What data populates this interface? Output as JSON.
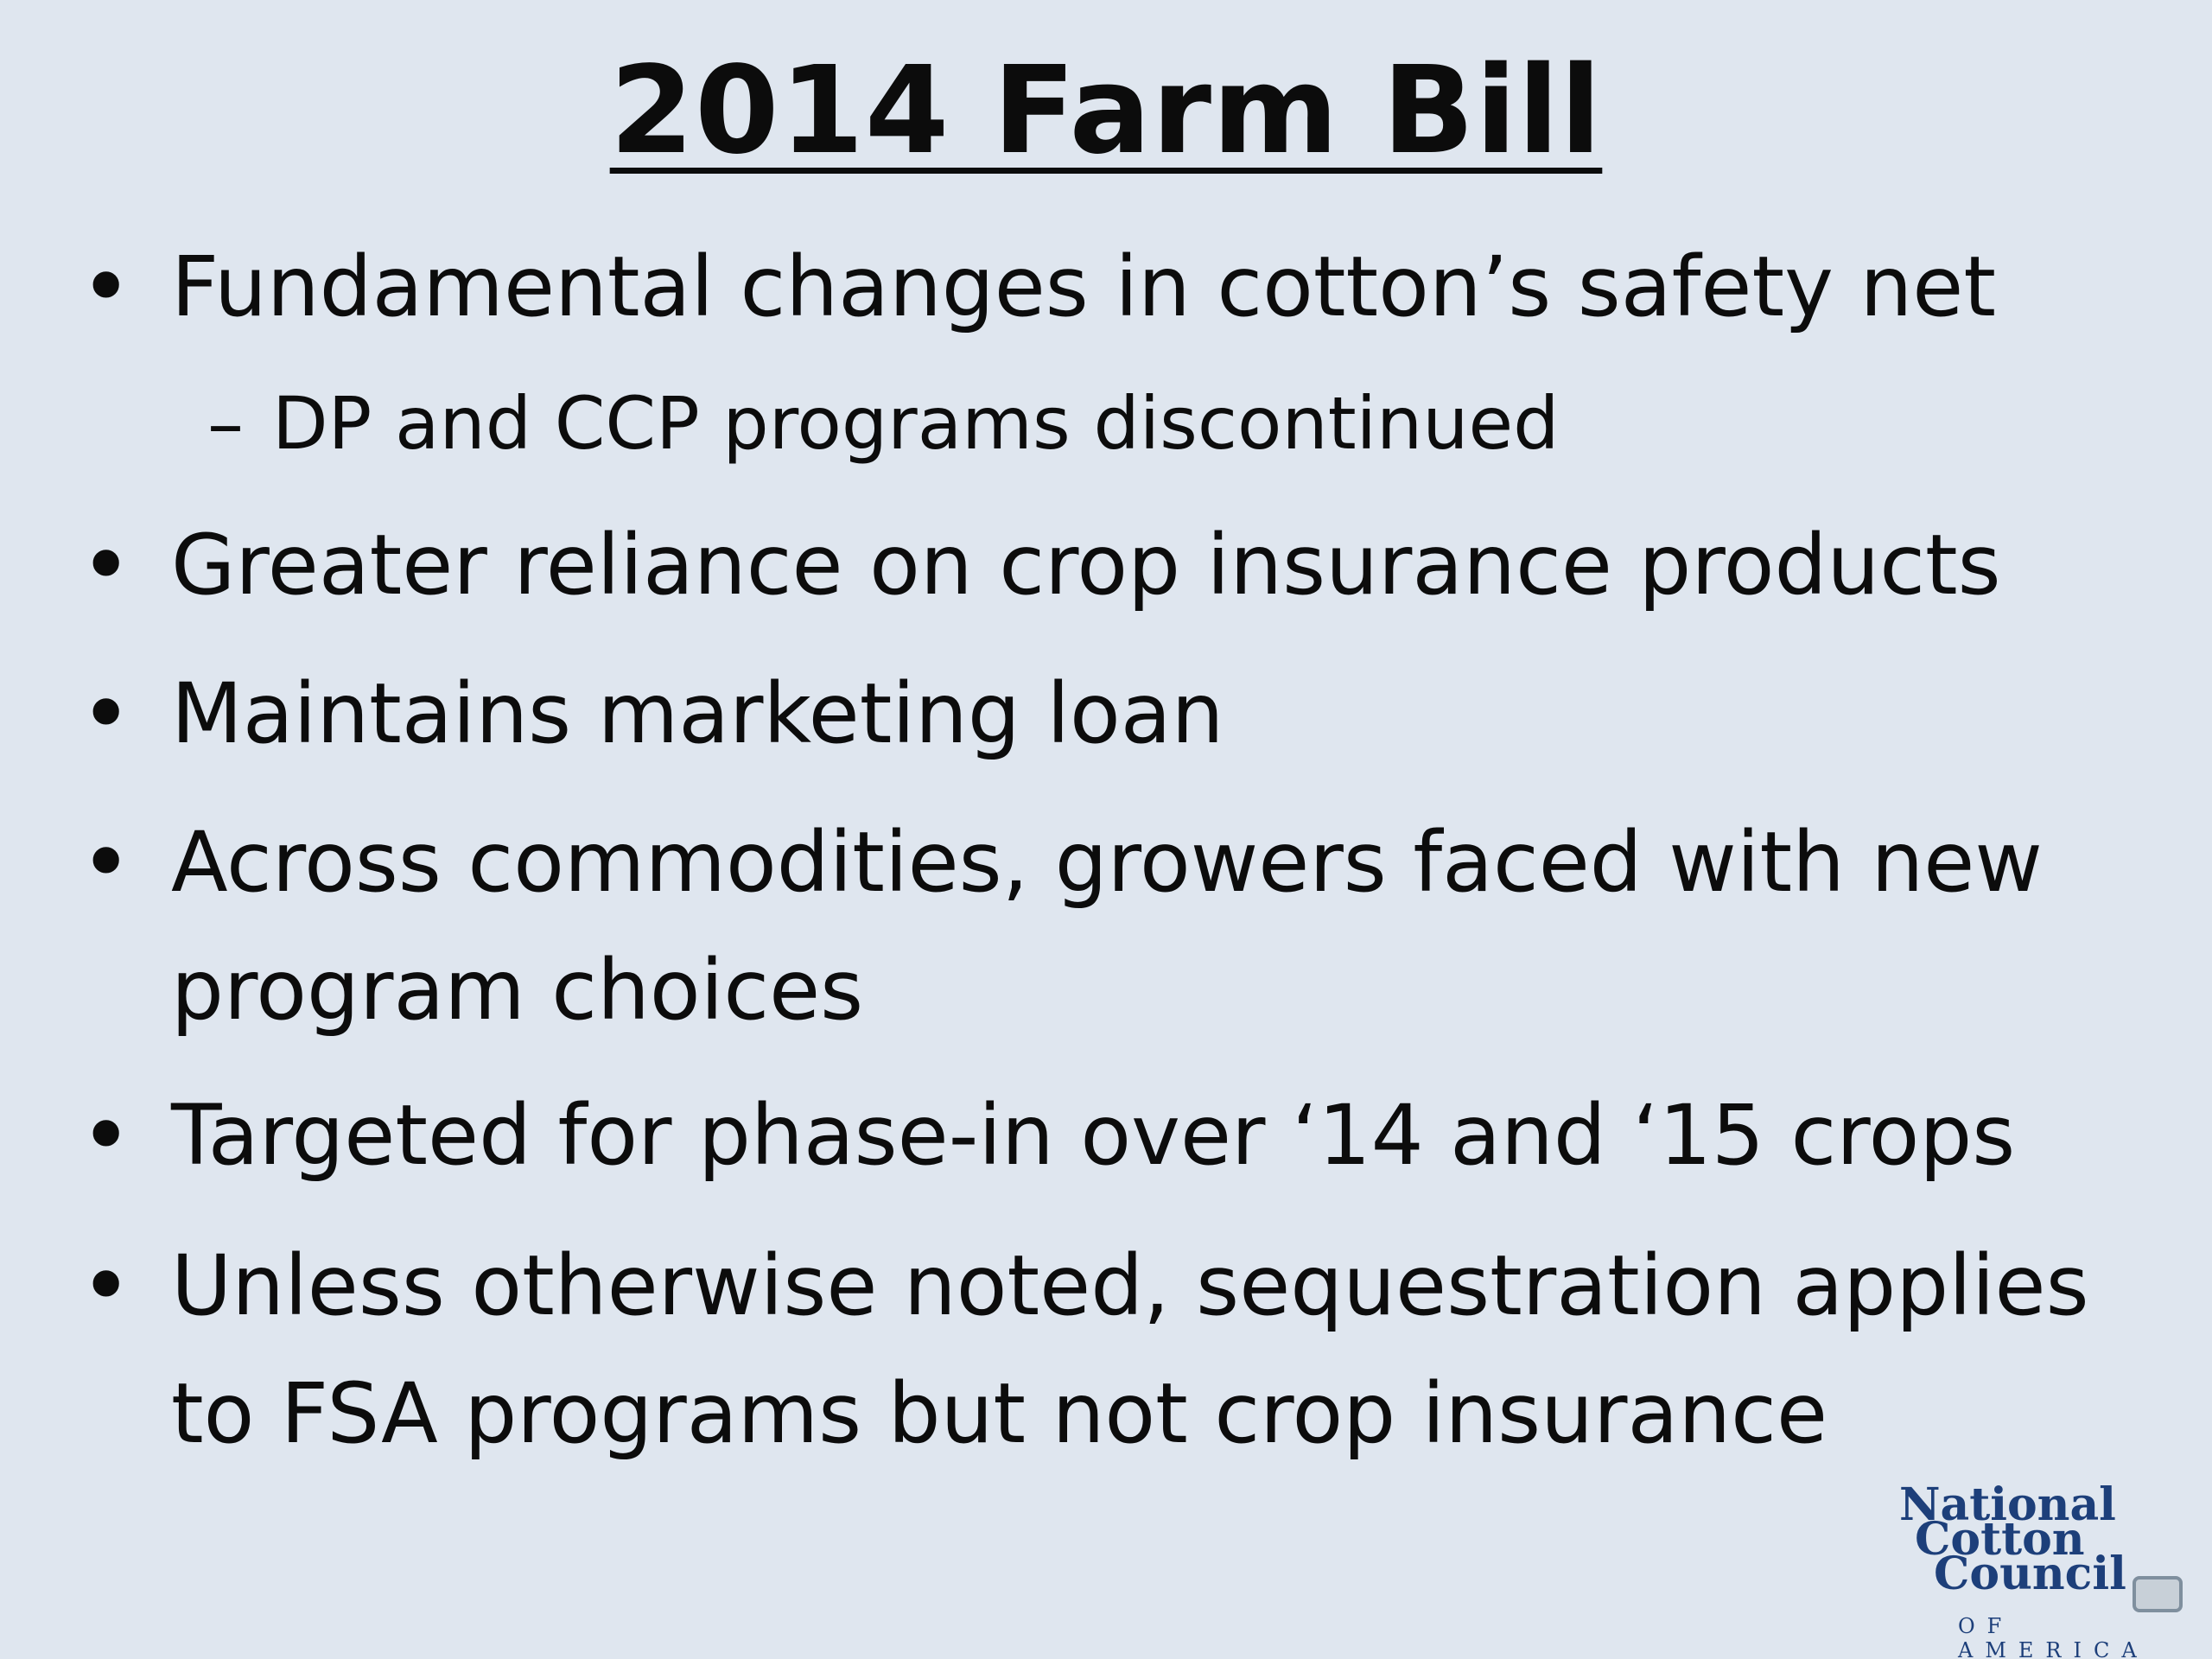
{
  "slide": {
    "title": "2014 Farm Bill",
    "bullets": [
      {
        "text": "Fundamental changes in cotton’s safety net",
        "subitems": [
          "DP and CCP programs discontinued"
        ]
      },
      {
        "text": "Greater reliance on crop insurance products"
      },
      {
        "text": "Maintains marketing loan"
      },
      {
        "text": "Across commodities, growers faced with new\nprogram choices"
      },
      {
        "text": "Targeted for phase-in over ‘14 and ‘15 crops"
      },
      {
        "text": "Unless otherwise noted, sequestration applies\nto FSA programs but not crop insurance"
      }
    ],
    "bullet_symbol": "•",
    "subitem_symbol": "–"
  },
  "logo": {
    "line1": "National",
    "line2": "Cotton",
    "line3": "Council",
    "subtitle": "OF AMERICA"
  },
  "colors": {
    "background": "#dfe6ef",
    "text": "#0c0c0c",
    "logo": "#1d3f7a"
  }
}
